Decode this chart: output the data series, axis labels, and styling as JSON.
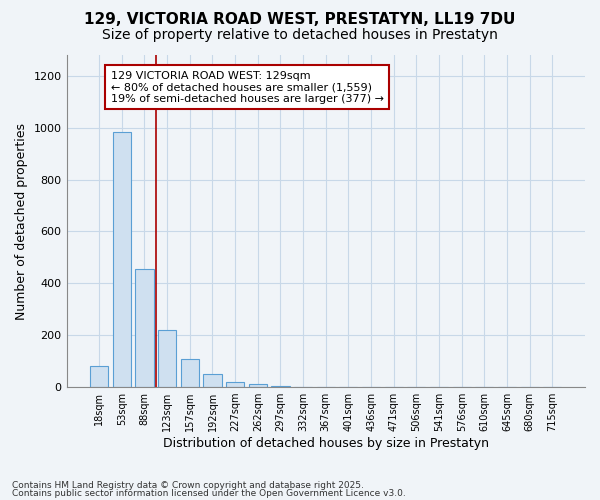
{
  "title_line1": "129, VICTORIA ROAD WEST, PRESTATYN, LL19 7DU",
  "title_line2": "Size of property relative to detached houses in Prestatyn",
  "xlabel": "Distribution of detached houses by size in Prestatyn",
  "ylabel": "Number of detached properties",
  "categories": [
    "18sqm",
    "53sqm",
    "88sqm",
    "123sqm",
    "157sqm",
    "192sqm",
    "227sqm",
    "262sqm",
    "297sqm",
    "332sqm",
    "367sqm",
    "401sqm",
    "436sqm",
    "471sqm",
    "506sqm",
    "541sqm",
    "576sqm",
    "610sqm",
    "645sqm",
    "680sqm",
    "715sqm"
  ],
  "values": [
    80,
    985,
    455,
    220,
    110,
    50,
    20,
    10,
    5,
    0,
    0,
    0,
    0,
    0,
    0,
    0,
    0,
    0,
    0,
    0,
    0
  ],
  "bar_color": "#cfe0f0",
  "bar_edge_color": "#5a9fd4",
  "vline_x": 2.5,
  "vline_color": "#aa0000",
  "annotation_text": "129 VICTORIA ROAD WEST: 129sqm\n← 80% of detached houses are smaller (1,559)\n19% of semi-detached houses are larger (377) →",
  "annotation_box_color": "#aa0000",
  "annotation_text_color": "black",
  "annotation_bg": "white",
  "ylim": [
    0,
    1280
  ],
  "yticks": [
    0,
    200,
    400,
    600,
    800,
    1000,
    1200
  ],
  "grid_color": "#c8d8e8",
  "background_color": "#f0f4f8",
  "plot_bg_color": "#f0f4f8",
  "footnote1": "Contains HM Land Registry data © Crown copyright and database right 2025.",
  "footnote2": "Contains public sector information licensed under the Open Government Licence v3.0.",
  "title_fontsize": 11,
  "subtitle_fontsize": 10,
  "tick_fontsize": 7,
  "label_fontsize": 9,
  "annotation_fontsize": 8
}
